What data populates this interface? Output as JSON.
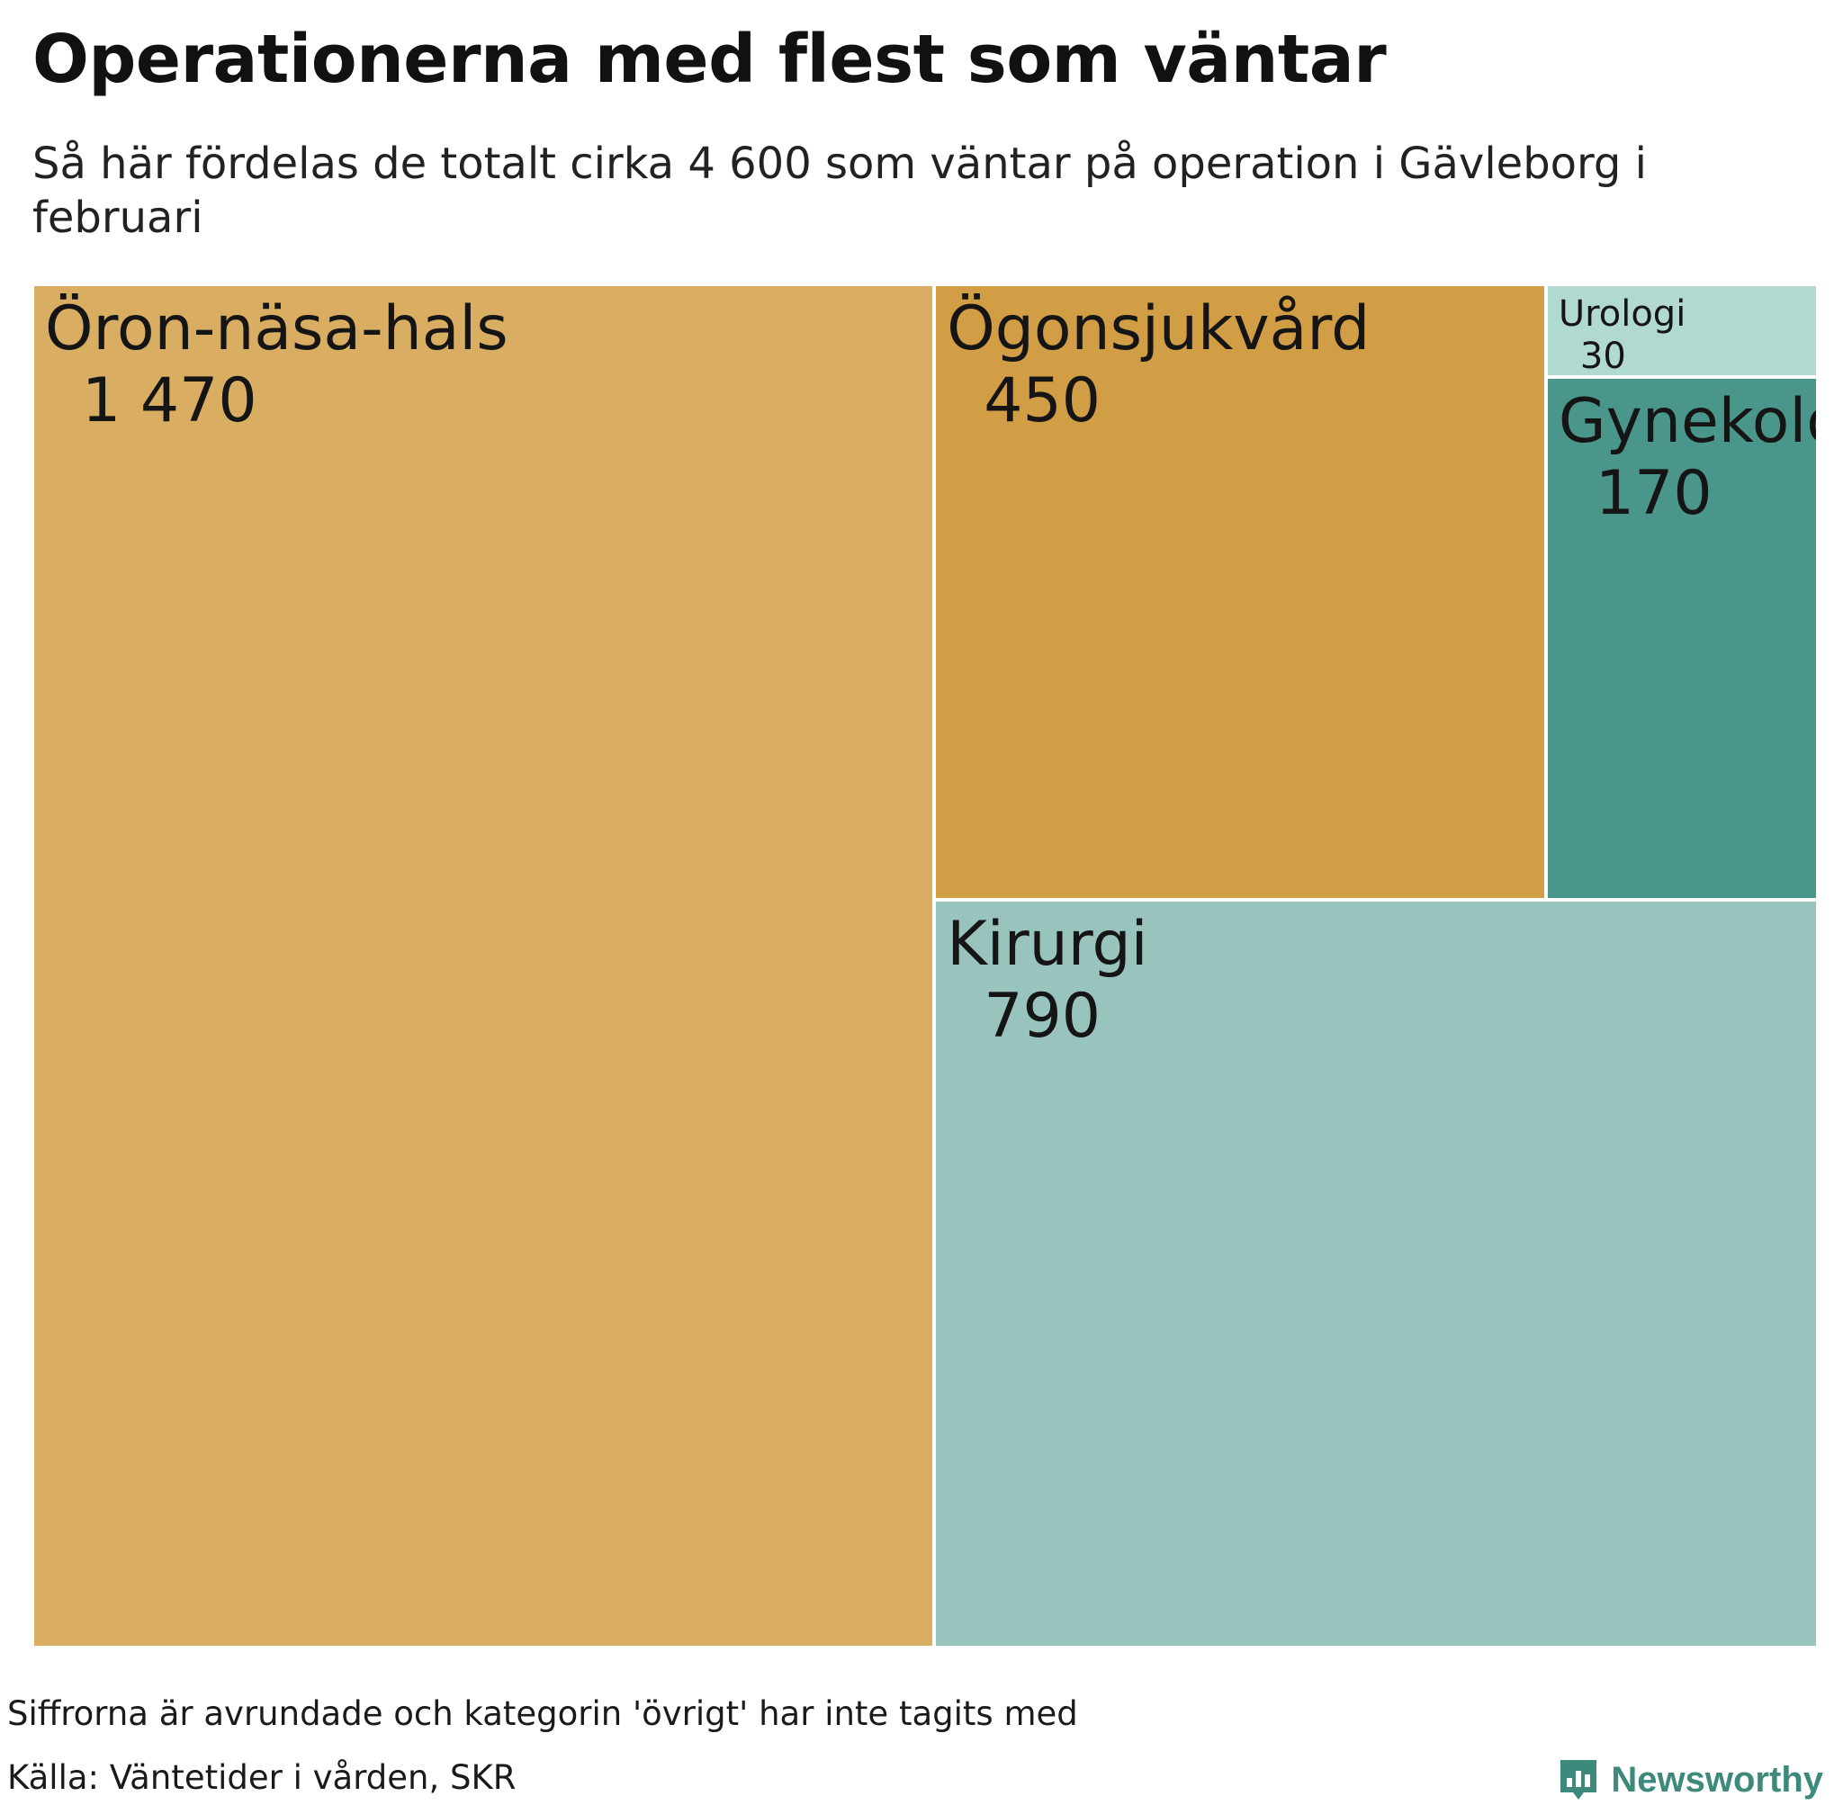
{
  "title": "Operationerna med flest som väntar",
  "subtitle": "Så här fördelas de totalt cirka 4 600 som väntar på operation i Gävleborg i februari",
  "chart_data": {
    "type": "treemap",
    "items": [
      {
        "label": "Öron-näsa-hals",
        "value": 1470,
        "value_label": "1 470",
        "color": "#d9ae63"
      },
      {
        "label": "Ögonsjukvård",
        "value": 450,
        "value_label": "450",
        "color": "#d19d45"
      },
      {
        "label": "Kirurgi",
        "value": 790,
        "value_label": "790",
        "color": "#99c4be"
      },
      {
        "label": "Urologi",
        "value": 30,
        "value_label": "30",
        "color": "#b2d8d2"
      },
      {
        "label": "Gynekologi",
        "value": 170,
        "value_label": "170",
        "color": "#4b968a"
      }
    ]
  },
  "footer": {
    "note": "Siffrorna är avrundade och kategorin 'övrigt' har inte tagits med",
    "source": "Källa: Väntetider i vården, SKR",
    "brand": "Newsworthy",
    "brand_icon": "newsworthy-logo-icon",
    "brand_color": "#3d8a7c"
  }
}
